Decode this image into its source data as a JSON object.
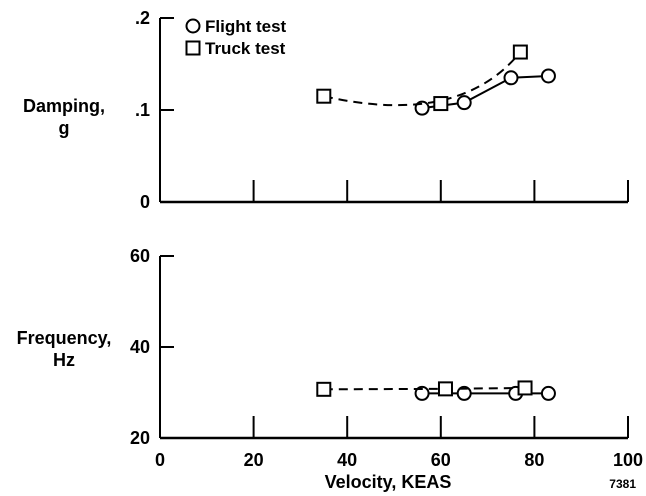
{
  "figure_id": "7381",
  "chart_data": [
    {
      "type": "line",
      "ylabel_lines": [
        "Damping,",
        "g"
      ],
      "xlim": [
        0,
        100
      ],
      "ylim": [
        0,
        0.2
      ],
      "x_ticks": [
        20,
        40,
        60,
        80,
        100
      ],
      "y_ticks": [
        0,
        0.1,
        0.2
      ],
      "y_tick_labels": [
        "0",
        ".1",
        ".2"
      ],
      "legend": {
        "position": "top-left"
      },
      "series": [
        {
          "name": "Flight test",
          "marker": "circle",
          "line": "solid",
          "x": [
            56,
            65,
            75,
            83
          ],
          "y": [
            0.102,
            0.108,
            0.135,
            0.137
          ]
        },
        {
          "name": "Truck test",
          "marker": "square",
          "line": "dashed",
          "x": [
            35,
            60,
            77
          ],
          "y": [
            0.115,
            0.107,
            0.163
          ]
        }
      ]
    },
    {
      "type": "line",
      "ylabel_lines": [
        "Frequency,",
        "Hz"
      ],
      "xlabel": "Velocity, KEAS",
      "xlim": [
        0,
        100
      ],
      "ylim": [
        20,
        60
      ],
      "x_ticks": [
        0,
        20,
        40,
        60,
        80,
        100
      ],
      "x_tick_labels": [
        "0",
        "20",
        "40",
        "60",
        "80",
        "100"
      ],
      "y_ticks": [
        20,
        40,
        60
      ],
      "y_tick_labels": [
        "20",
        "40",
        "60"
      ],
      "series": [
        {
          "name": "Flight test",
          "marker": "circle",
          "line": "solid",
          "x": [
            56,
            65,
            76,
            83
          ],
          "y": [
            29.8,
            29.8,
            29.8,
            29.8
          ]
        },
        {
          "name": "Truck test",
          "marker": "square",
          "line": "dashed",
          "x": [
            35,
            61,
            78
          ],
          "y": [
            30.7,
            30.8,
            31.0
          ]
        }
      ]
    }
  ]
}
